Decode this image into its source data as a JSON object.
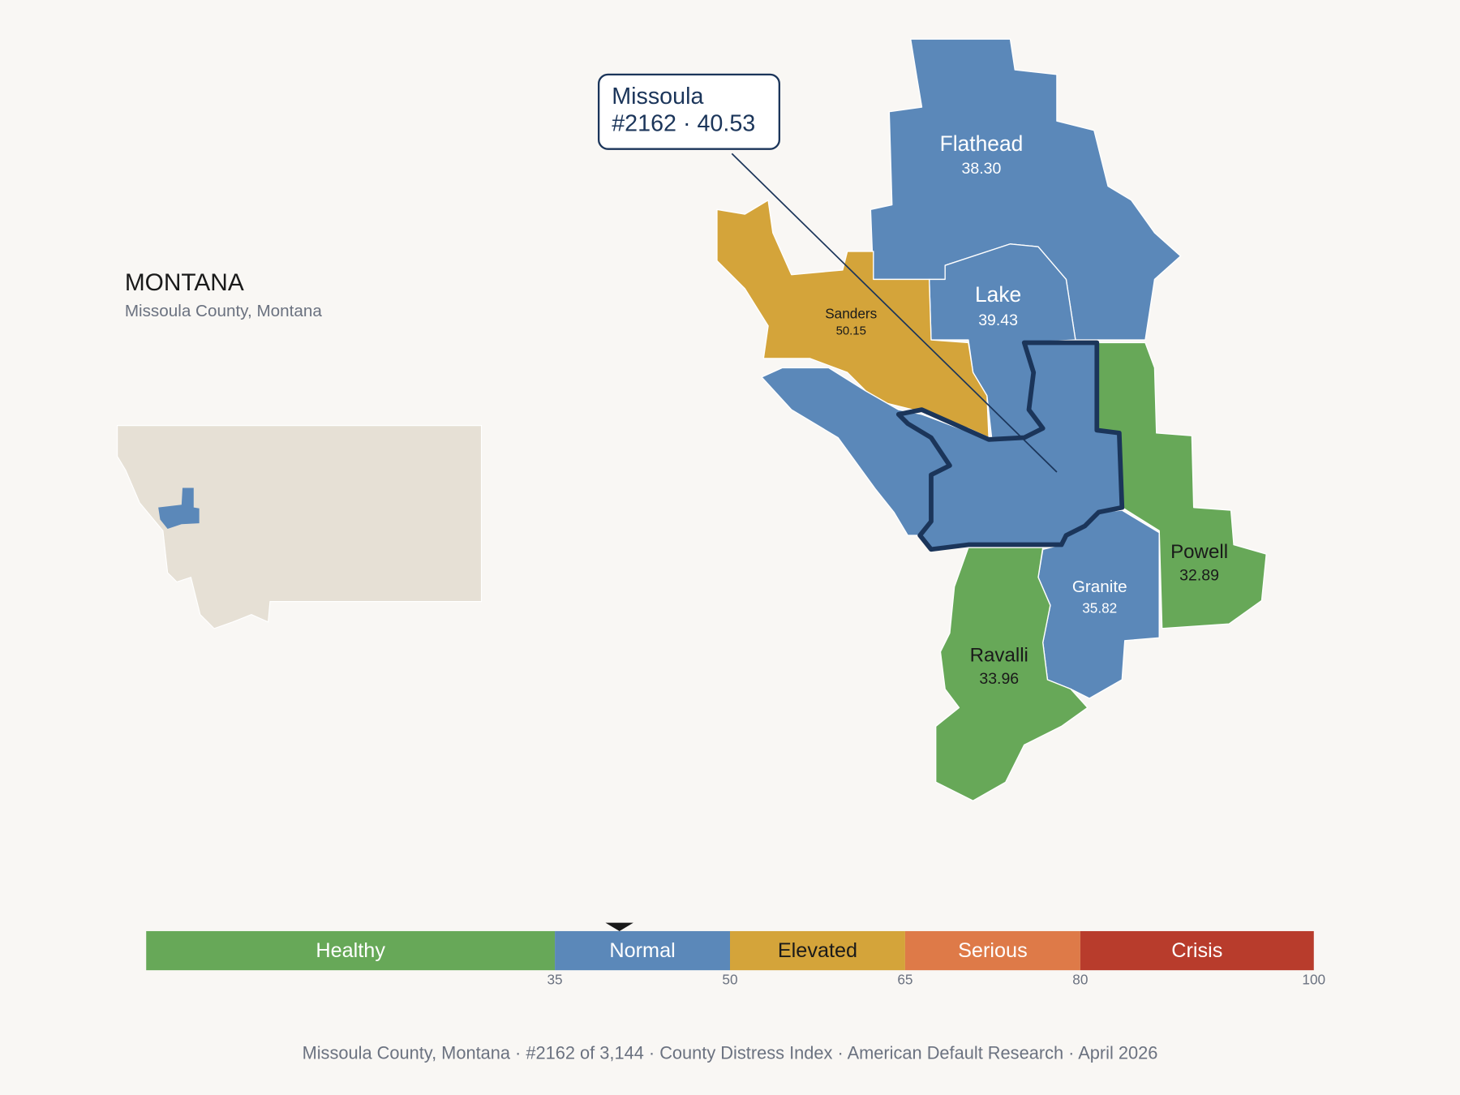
{
  "header": {
    "title": "MONTANA",
    "subtitle": "Missoula County, Montana"
  },
  "callout": {
    "name": "Missoula",
    "detail": "#2162 · 40.53"
  },
  "counties": [
    {
      "name": "Flathead",
      "score": "38.30"
    },
    {
      "name": "Lake",
      "score": "39.43"
    },
    {
      "name": "Sanders",
      "score": "50.15"
    },
    {
      "name": "Powell",
      "score": "32.89"
    },
    {
      "name": "Granite",
      "score": "35.82"
    },
    {
      "name": "Ravalli",
      "score": "33.96"
    }
  ],
  "scale": {
    "range": [
      0,
      100
    ],
    "ticks": [
      35,
      50,
      65,
      80,
      100
    ],
    "marker": 40.53,
    "segments": [
      {
        "label": "Healthy",
        "color": "#67a858"
      },
      {
        "label": "Normal",
        "color": "#5b88b9"
      },
      {
        "label": "Elevated",
        "color": "#d4a43a"
      },
      {
        "label": "Serious",
        "color": "#de7a48"
      },
      {
        "label": "Crisis",
        "color": "#b83c2c"
      }
    ]
  },
  "footer": "Missoula County, Montana  ·  #2162 of 3,144  ·  County Distress Index  ·  American Default Research  ·  April 2026"
}
